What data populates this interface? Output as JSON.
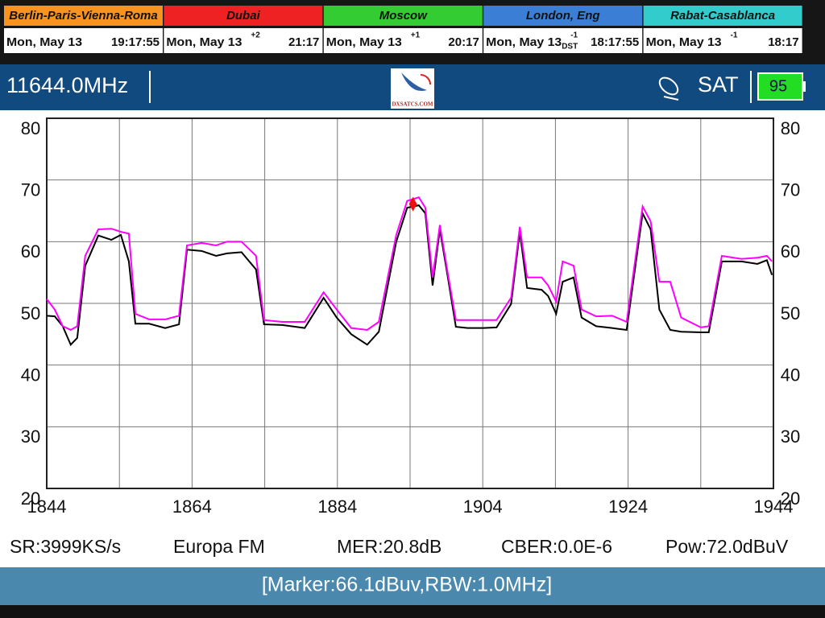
{
  "clocks": [
    {
      "city": "Berlin-Paris-Vienna-Roma",
      "date": "Mon, May 13",
      "time": "19:17:55"
    },
    {
      "city": "Dubai",
      "date": "Mon, May 13",
      "offset": "+2",
      "time": "21:17"
    },
    {
      "city": "Moscow",
      "date": "Mon, May 13",
      "offset": "+1",
      "time": "20:17"
    },
    {
      "city": "London, Eng",
      "date": "Mon, May 13",
      "offset": "-1",
      "dst": "DST",
      "time": "18:17:55"
    },
    {
      "city": "Rabat-Casablanca",
      "date": "Mon, May 13",
      "offset": "-1",
      "time": "18:17"
    }
  ],
  "header": {
    "frequency": "11644.0MHz",
    "logo": "DXSATCS.COM",
    "mode": "SAT",
    "battery": "95"
  },
  "chart_data": {
    "type": "line",
    "x": [
      1844.0,
      1845.1,
      1846.2,
      1847.3,
      1848.2,
      1849.3,
      1851.1,
      1852.9,
      1854.2,
      1855.3,
      1856.2,
      1858.1,
      1860.3,
      1862.2,
      1863.3,
      1865.3,
      1867.3,
      1868.8,
      1870.8,
      1872.8,
      1873.9,
      1876.4,
      1879.5,
      1882.1,
      1883.9,
      1885.9,
      1888.1,
      1889.7,
      1892.1,
      1893.6,
      1895.2,
      1896.1,
      1897.1,
      1898.1,
      1899.2,
      1900.3,
      1901.9,
      1904.1,
      1905.9,
      1907.9,
      1909.1,
      1910.1,
      1912.1,
      1913.0,
      1914.1,
      1915.0,
      1916.5,
      1917.6,
      1919.6,
      1921.8,
      1923.8,
      1926.0,
      1927.1,
      1928.3,
      1929.8,
      1931.3,
      1934.0,
      1935.1,
      1936.9,
      1939.6,
      1941.8,
      1943.1,
      1943.8
    ],
    "series": [
      {
        "color": "#000000",
        "values": [
          48.0,
          47.9,
          46.3,
          43.3,
          44.4,
          56.1,
          61.0,
          60.3,
          61.1,
          56.8,
          46.7,
          46.7,
          46.0,
          46.6,
          58.7,
          58.5,
          57.7,
          58.1,
          58.3,
          55.5,
          46.6,
          46.5,
          46.0,
          50.9,
          47.7,
          45.0,
          43.3,
          45.4,
          60.0,
          65.5,
          65.9,
          64.6,
          52.9,
          62.0,
          54.2,
          46.2,
          46.0,
          46.0,
          46.1,
          49.9,
          61.6,
          52.5,
          52.2,
          51.2,
          48.3,
          53.5,
          54.2,
          47.7,
          46.3,
          46.0,
          45.7,
          64.6,
          62.0,
          49.0,
          45.7,
          45.4,
          45.3,
          45.3,
          56.8,
          56.8,
          56.4,
          57.0,
          54.6
        ]
      },
      {
        "color": "#ff00ff",
        "values": [
          50.7,
          49.0,
          46.3,
          45.7,
          46.3,
          57.7,
          62.0,
          62.1,
          61.6,
          61.3,
          48.3,
          47.4,
          47.4,
          48.0,
          59.4,
          59.8,
          59.4,
          60.0,
          60.0,
          57.7,
          47.3,
          47.0,
          47.0,
          51.8,
          49.0,
          46.0,
          45.7,
          47.0,
          61.1,
          66.6,
          67.2,
          65.5,
          54.2,
          62.7,
          54.8,
          47.3,
          47.3,
          47.3,
          47.3,
          50.9,
          62.4,
          54.2,
          54.2,
          52.9,
          50.3,
          56.8,
          56.1,
          49.0,
          47.9,
          48.0,
          47.0,
          65.7,
          63.3,
          53.5,
          53.5,
          47.7,
          46.1,
          46.3,
          57.7,
          57.2,
          57.4,
          57.7,
          56.8
        ]
      }
    ],
    "xlim": [
      1844,
      1944
    ],
    "xticks": [
      1844,
      1864,
      1884,
      1904,
      1924,
      1944
    ],
    "xminor": [
      1854,
      1874,
      1894,
      1914,
      1934
    ],
    "ylim": [
      20,
      80
    ],
    "yticks": [
      20,
      30,
      40,
      50,
      60,
      70,
      80
    ],
    "grid": true,
    "marker": {
      "x": 1894.4,
      "y": 66.1,
      "color": "#ee1111"
    }
  },
  "status": [
    "SR:3999KS/s",
    "Europa FM",
    "MER:20.8dB",
    "CBER:0.0E-6",
    "Pow:72.0dBuV"
  ],
  "footer": "[Marker:66.1dBuv,RBW:1.0MHz]"
}
